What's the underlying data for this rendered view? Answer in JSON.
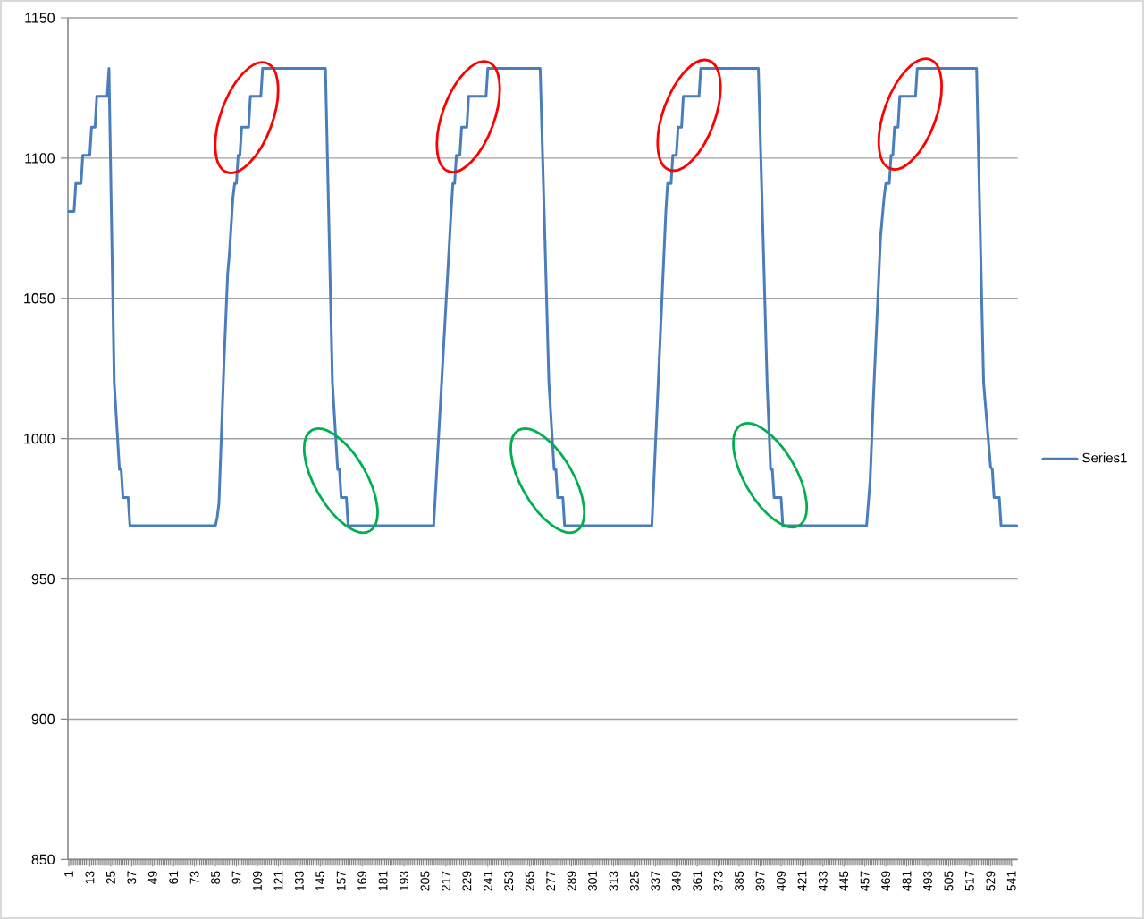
{
  "chart_data": {
    "type": "line",
    "x": [
      1,
      4,
      5,
      8,
      9,
      13,
      14,
      16,
      17,
      23,
      24,
      27,
      30,
      31,
      32,
      35,
      36,
      85,
      86,
      87,
      90,
      92,
      93,
      95,
      96,
      97,
      98,
      99,
      100,
      104,
      105,
      111,
      112,
      148,
      152,
      155,
      156,
      157,
      160,
      161,
      210,
      220,
      221,
      222,
      223,
      225,
      226,
      229,
      230,
      240,
      241,
      271,
      276,
      279,
      280,
      281,
      284,
      285,
      335,
      343,
      344,
      346,
      347,
      349,
      350,
      352,
      353,
      362,
      363,
      396,
      401,
      403,
      404,
      405,
      409,
      410,
      458,
      460,
      462,
      466,
      468,
      469,
      471,
      472,
      473,
      474,
      476,
      477,
      486,
      487,
      521,
      525,
      529,
      530,
      531,
      534,
      535,
      544
    ],
    "series": [
      {
        "name": "Series1",
        "color": "#4a7ebb",
        "values": [
          1081,
          1081,
          1091,
          1091,
          1101,
          1101,
          1111,
          1111,
          1122,
          1122,
          1132,
          1020,
          989,
          989,
          979,
          979,
          969,
          969,
          972,
          977,
          1029,
          1059,
          1066,
          1086,
          1091,
          1091,
          1101,
          1101,
          1111,
          1111,
          1122,
          1122,
          1132,
          1132,
          1020,
          989,
          989,
          979,
          979,
          969,
          969,
          1081,
          1091,
          1091,
          1101,
          1101,
          1111,
          1111,
          1122,
          1122,
          1132,
          1132,
          1020,
          989,
          989,
          979,
          979,
          969,
          969,
          1081,
          1091,
          1091,
          1101,
          1101,
          1111,
          1111,
          1122,
          1122,
          1132,
          1132,
          1020,
          989,
          989,
          979,
          979,
          969,
          969,
          985,
          1016,
          1072,
          1086,
          1091,
          1091,
          1101,
          1101,
          1111,
          1111,
          1122,
          1122,
          1132,
          1132,
          1020,
          990,
          989,
          979,
          979,
          969,
          969
        ]
      }
    ],
    "xlim": [
      0.5,
      544.5
    ],
    "xticks": [
      1,
      13,
      25,
      37,
      49,
      61,
      73,
      85,
      97,
      109,
      121,
      133,
      145,
      157,
      169,
      181,
      193,
      205,
      217,
      229,
      241,
      253,
      265,
      277,
      289,
      301,
      313,
      325,
      337,
      349,
      361,
      373,
      385,
      397,
      409,
      421,
      433,
      445,
      457,
      469,
      481,
      493,
      505,
      517,
      529,
      541
    ],
    "ylim": [
      850,
      1150
    ],
    "yticks": [
      850,
      900,
      950,
      1000,
      1050,
      1100,
      1150
    ],
    "grid": "y",
    "legend": "right"
  }
}
